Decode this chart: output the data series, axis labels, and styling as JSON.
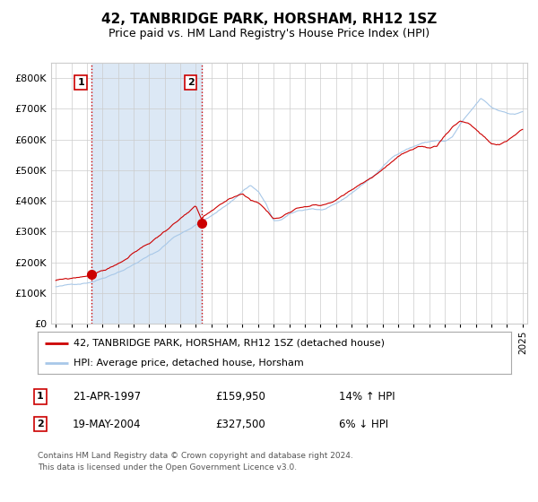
{
  "title": "42, TANBRIDGE PARK, HORSHAM, RH12 1SZ",
  "subtitle": "Price paid vs. HM Land Registry's House Price Index (HPI)",
  "legend_line1": "42, TANBRIDGE PARK, HORSHAM, RH12 1SZ (detached house)",
  "legend_line2": "HPI: Average price, detached house, Horsham",
  "sale1_date": "21-APR-1997",
  "sale1_price": 159950,
  "sale1_hpi": "14% ↑ HPI",
  "sale2_date": "19-MAY-2004",
  "sale2_price": 327500,
  "sale2_hpi": "6% ↓ HPI",
  "footnote": "Contains HM Land Registry data © Crown copyright and database right 2024.\nThis data is licensed under the Open Government Licence v3.0.",
  "hpi_color": "#a8c8e8",
  "price_color": "#cc0000",
  "shade_color": "#dce8f5",
  "vline_color": "#cc0000",
  "grid_color": "#cccccc",
  "bg_color": "#ffffff",
  "y_min": 0,
  "y_max": 850000,
  "sale1_x": 1997.31,
  "sale2_x": 2004.38,
  "year_start": 1995,
  "year_end": 2025,
  "hpi_keypoints_x": [
    1995.0,
    1995.5,
    1996.0,
    1996.5,
    1997.0,
    1997.5,
    1998.0,
    1998.5,
    1999.0,
    1999.5,
    2000.0,
    2000.5,
    2001.0,
    2001.5,
    2002.0,
    2002.5,
    2003.0,
    2003.5,
    2004.0,
    2004.5,
    2005.0,
    2005.5,
    2006.0,
    2006.5,
    2007.0,
    2007.5,
    2008.0,
    2008.5,
    2009.0,
    2009.5,
    2010.0,
    2010.5,
    2011.0,
    2011.5,
    2012.0,
    2012.5,
    2013.0,
    2013.5,
    2014.0,
    2014.5,
    2015.0,
    2015.5,
    2016.0,
    2016.5,
    2017.0,
    2017.5,
    2018.0,
    2018.5,
    2019.0,
    2019.5,
    2020.0,
    2020.5,
    2021.0,
    2021.5,
    2022.0,
    2022.3,
    2022.7,
    2023.0,
    2023.5,
    2024.0,
    2024.5,
    2025.0
  ],
  "hpi_keypoints_y": [
    120000,
    122000,
    126000,
    130000,
    135000,
    142000,
    152000,
    163000,
    175000,
    186000,
    200000,
    215000,
    228000,
    240000,
    262000,
    285000,
    300000,
    315000,
    330000,
    345000,
    358000,
    375000,
    395000,
    415000,
    440000,
    460000,
    440000,
    400000,
    340000,
    345000,
    360000,
    370000,
    375000,
    380000,
    375000,
    380000,
    390000,
    405000,
    425000,
    445000,
    465000,
    485000,
    510000,
    535000,
    555000,
    570000,
    580000,
    590000,
    595000,
    600000,
    595000,
    610000,
    650000,
    680000,
    710000,
    730000,
    715000,
    700000,
    690000,
    685000,
    680000,
    690000
  ],
  "price_keypoints_x": [
    1995.0,
    1995.5,
    1996.0,
    1996.5,
    1997.0,
    1997.31,
    1997.5,
    1998.0,
    1998.5,
    1999.0,
    1999.5,
    2000.0,
    2000.5,
    2001.0,
    2001.5,
    2002.0,
    2002.5,
    2003.0,
    2003.5,
    2004.0,
    2004.38,
    2004.5,
    2005.0,
    2005.5,
    2006.0,
    2006.5,
    2007.0,
    2007.5,
    2008.0,
    2008.5,
    2009.0,
    2009.5,
    2010.0,
    2010.5,
    2011.0,
    2011.5,
    2012.0,
    2012.5,
    2013.0,
    2013.5,
    2014.0,
    2014.5,
    2015.0,
    2015.5,
    2016.0,
    2016.5,
    2017.0,
    2017.5,
    2018.0,
    2018.5,
    2019.0,
    2019.5,
    2020.0,
    2020.5,
    2021.0,
    2021.5,
    2022.0,
    2022.3,
    2022.7,
    2023.0,
    2023.5,
    2024.0,
    2024.5,
    2025.0
  ],
  "price_keypoints_y": [
    142000,
    143000,
    146000,
    150000,
    155000,
    159950,
    163000,
    172000,
    182000,
    196000,
    210000,
    228000,
    245000,
    260000,
    278000,
    300000,
    322000,
    340000,
    358000,
    375000,
    327500,
    340000,
    355000,
    370000,
    385000,
    398000,
    410000,
    390000,
    385000,
    360000,
    330000,
    335000,
    355000,
    370000,
    378000,
    385000,
    382000,
    390000,
    400000,
    415000,
    430000,
    445000,
    462000,
    478000,
    498000,
    520000,
    540000,
    553000,
    558000,
    562000,
    558000,
    565000,
    600000,
    630000,
    650000,
    645000,
    625000,
    610000,
    590000,
    575000,
    570000,
    580000,
    600000,
    620000
  ]
}
